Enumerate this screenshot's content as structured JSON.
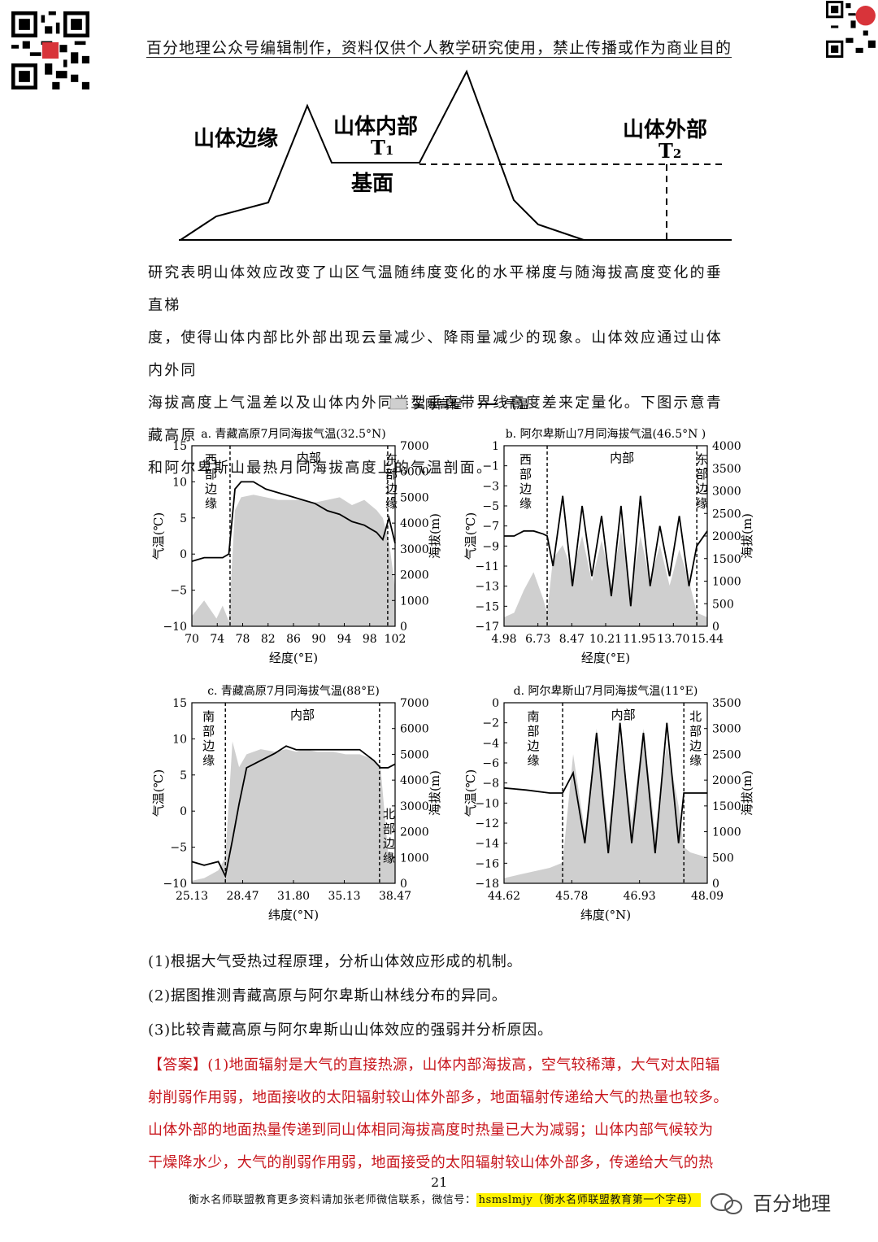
{
  "header": {
    "text": "百分地理公众号编辑制作，资料仅供个人教学研究使用，禁止传播或作为商业目的"
  },
  "diagram": {
    "label_edge": "山体边缘",
    "label_inner": "山体内部",
    "label_outer": "山体外部",
    "label_t1": "T",
    "label_t1_sub": "1",
    "label_t2": "T",
    "label_t2_sub": "2",
    "label_base": "基面"
  },
  "intro": {
    "line1": "研究表明山体效应改变了山区气温随纬度变化的水平梯度与随海拔高度变化的垂直梯",
    "line2": "度，使得山体内部比外部出现云量减少、降雨量减少的现象。山体效应通过山体内外同",
    "line3": "海拔高度上气温差以及山体内外同类型垂直带界线高度差来定量化。下图示意青藏高原",
    "line4": "和阿尔卑斯山最热月同海拔高度上的气温剖面。"
  },
  "legend": {
    "elev": "实际高程",
    "temp": "气温"
  },
  "chart_data": [
    {
      "type": "line",
      "title": "a. 青藏高原7月同海拔气温(32.5°N)",
      "xlabel": "经度(°E)",
      "ylabel_left": "气温(℃)",
      "ylabel_right": "海拔(m)",
      "xticks": [
        "70",
        "74",
        "78",
        "82",
        "86",
        "90",
        "94",
        "98",
        "102"
      ],
      "yticks_left": [
        "15",
        "10",
        "5",
        "0",
        "−5",
        "−10"
      ],
      "yticks_right": [
        "7000",
        "6000",
        "5000",
        "4000",
        "3000",
        "2000",
        "1000",
        "0"
      ],
      "xlim": [
        70,
        103
      ],
      "ylim_left": [
        -10,
        15
      ],
      "ylim_right": [
        0,
        7000
      ],
      "zones": [
        "西部边缘",
        "内部",
        "东部边缘"
      ],
      "boundaries": [
        76.2,
        101.8
      ],
      "series": [
        {
          "name": "气温",
          "x": [
            70,
            72,
            74,
            75,
            76,
            77,
            78,
            80,
            82,
            84,
            86,
            88,
            90,
            92,
            94,
            96,
            98,
            100,
            101,
            102,
            103
          ],
          "values": [
            -1,
            -0.5,
            -0.5,
            -0.5,
            0,
            9,
            10,
            10,
            9,
            8.5,
            8,
            7.5,
            7,
            6,
            5.5,
            4.5,
            4,
            3,
            2,
            5,
            1.5
          ]
        },
        {
          "name": "实际高程",
          "x": [
            70,
            72,
            74,
            75,
            76,
            77,
            78,
            80,
            82,
            84,
            86,
            88,
            90,
            92,
            94,
            96,
            98,
            100,
            101,
            102,
            103
          ],
          "values": [
            400,
            1000,
            300,
            800,
            200,
            4500,
            5000,
            5100,
            5000,
            4900,
            4900,
            4900,
            4800,
            4900,
            5000,
            4700,
            4900,
            4500,
            4200,
            3300,
            1500
          ]
        }
      ]
    },
    {
      "type": "line",
      "title": "b. 阿尔卑斯山7月同海拔气温(46.5°N )",
      "xlabel": "经度(°E)",
      "ylabel_left": "气温(℃)",
      "ylabel_right": "海拔(m)",
      "xticks": [
        "4.98",
        "6.73",
        "8.47",
        "10.21",
        "11.95",
        "13.70",
        "15.44"
      ],
      "yticks_left": [
        "1",
        "−1",
        "−3",
        "−5",
        "−7",
        "−9",
        "−11",
        "−13",
        "−15",
        "−17"
      ],
      "yticks_right": [
        "4000",
        "3500",
        "3000",
        "2500",
        "2000",
        "1500",
        "1000",
        "500",
        "0"
      ],
      "xlim": [
        4.98,
        15.44
      ],
      "ylim_left": [
        -17,
        1
      ],
      "ylim_right": [
        0,
        4000
      ],
      "zones": [
        "西部边缘",
        "内部",
        "东部边缘"
      ],
      "boundaries": [
        7.2,
        14.9
      ],
      "series": [
        {
          "name": "气温",
          "x": [
            4.98,
            5.5,
            6,
            6.5,
            7,
            7.2,
            7.5,
            8,
            8.5,
            9,
            9.5,
            10,
            10.5,
            11,
            11.5,
            12,
            12.5,
            13,
            13.5,
            14,
            14.5,
            14.9,
            15.44
          ],
          "values": [
            -8,
            -8,
            -7.5,
            -7.5,
            -7.8,
            -8,
            -11,
            -4,
            -13,
            -5,
            -12,
            -6,
            -14,
            -5,
            -15,
            -4,
            -13,
            -7,
            -12,
            -6,
            -13,
            -9,
            -7.5
          ]
        },
        {
          "name": "实际高程",
          "x": [
            4.98,
            5.5,
            6,
            6.5,
            7,
            7.2,
            7.5,
            8,
            8.5,
            9,
            9.5,
            10,
            10.5,
            11,
            11.5,
            12,
            12.5,
            13,
            13.5,
            14,
            14.5,
            14.9,
            15.44
          ],
          "values": [
            200,
            300,
            800,
            1200,
            600,
            300,
            1500,
            1800,
            1200,
            2000,
            1000,
            1900,
            900,
            2100,
            800,
            2000,
            1000,
            1800,
            900,
            1700,
            1000,
            300,
            200
          ]
        }
      ]
    },
    {
      "type": "line",
      "title": "c. 青藏高原7月同海拔气温(88°E)",
      "xlabel": "纬度(°N)",
      "ylabel_left": "气温(℃)",
      "ylabel_right": "海拔(m)",
      "xticks": [
        "25.13",
        "28.47",
        "31.80",
        "35.13",
        "38.47"
      ],
      "yticks_left": [
        "15",
        "10",
        "5",
        "0",
        "−5",
        "−10"
      ],
      "yticks_right": [
        "7000",
        "6000",
        "5000",
        "4000",
        "3000",
        "2000",
        "1000",
        "0"
      ],
      "xlim": [
        25.13,
        39.5
      ],
      "ylim_left": [
        -10,
        15
      ],
      "ylim_right": [
        0,
        7000
      ],
      "zones": [
        "南部边缘",
        "内部",
        "北部边缘"
      ],
      "boundaries": [
        27.5,
        38.4
      ],
      "series": [
        {
          "name": "气温",
          "x": [
            25.13,
            26,
            27,
            27.5,
            28,
            28.47,
            29,
            30,
            31,
            31.8,
            32.5,
            33,
            34,
            35.13,
            36,
            37,
            38,
            38.47,
            39,
            39.5
          ],
          "values": [
            -7,
            -7.5,
            -7,
            -9,
            -4,
            1,
            6,
            7,
            8,
            9,
            8.5,
            8.5,
            8.5,
            8.5,
            8.5,
            8.5,
            7,
            6,
            6,
            6.5
          ]
        },
        {
          "name": "实际高程",
          "x": [
            25.13,
            26,
            27,
            27.5,
            28,
            28.47,
            29,
            30,
            31,
            31.8,
            32.5,
            33,
            34,
            35.13,
            36,
            37,
            38,
            38.47,
            39,
            39.5
          ],
          "values": [
            100,
            200,
            500,
            1000,
            5500,
            4500,
            5000,
            5200,
            5100,
            5200,
            5100,
            5200,
            5100,
            5100,
            5000,
            5000,
            4800,
            4500,
            1200,
            1000
          ]
        }
      ]
    },
    {
      "type": "line",
      "title": "d. 阿尔卑斯山7月同海拔气温(11°E)",
      "xlabel": "纬度(°N)",
      "ylabel_left": "气温(℃)",
      "ylabel_right": "海拔(m)",
      "xticks": [
        "44.62",
        "45.78",
        "46.93",
        "48.09"
      ],
      "yticks_left": [
        "0",
        "−2",
        "−4",
        "−6",
        "−8",
        "−10",
        "−12",
        "−14",
        "−16",
        "−18"
      ],
      "yticks_right": [
        "3500",
        "3000",
        "2500",
        "2000",
        "1500",
        "1000",
        "500",
        "0"
      ],
      "xlim": [
        44.62,
        48.09
      ],
      "ylim_left": [
        -18,
        0
      ],
      "ylim_right": [
        0,
        3500
      ],
      "zones": [
        "南部边缘",
        "内部",
        "北部边缘"
      ],
      "boundaries": [
        45.62,
        47.69
      ],
      "series": [
        {
          "name": "气温",
          "x": [
            44.62,
            45,
            45.4,
            45.62,
            45.8,
            46,
            46.2,
            46.4,
            46.6,
            46.8,
            47,
            47.2,
            47.4,
            47.6,
            47.69,
            47.8,
            48.09
          ],
          "values": [
            -8.5,
            -8.7,
            -9,
            -9,
            -7,
            -14,
            -3,
            -15,
            -2,
            -14,
            -3,
            -15,
            -2,
            -14,
            -9,
            -9,
            -9
          ]
        },
        {
          "name": "实际高程",
          "x": [
            44.62,
            45,
            45.4,
            45.62,
            45.8,
            46,
            46.2,
            46.4,
            46.6,
            46.8,
            47,
            47.2,
            47.4,
            47.6,
            47.69,
            47.8,
            48.09
          ],
          "values": [
            100,
            200,
            300,
            400,
            2500,
            1000,
            3000,
            1000,
            2800,
            1200,
            3000,
            1000,
            2700,
            1500,
            700,
            600,
            500
          ]
        }
      ]
    }
  ],
  "questions": {
    "q1": "(1)根据大气受热过程原理，分析山体效应形成的机制。",
    "q2": "(2)据图推测青藏高原与阿尔卑斯山林线分布的异同。",
    "q3": "(3)比较青藏高原与阿尔卑斯山山体效应的强弱并分析原因。"
  },
  "answer": {
    "tag": "【答案】",
    "line1": "(1)地面辐射是大气的直接热源，山体内部海拔高，空气较稀薄，大气对太阳辐",
    "line2": "射削弱作用弱，地面接收的太阳辐射较山体外部多，地面辐射传递给大气的热量也较多。",
    "line3": "山体外部的地面热量传递到同山体相同海拔高度时热量已大为减弱；山体内部气候较为",
    "line4": "干燥降水少，大气的削弱作用弱，地面接受的太阳辐射较山体外部多，传递给大气的热"
  },
  "footer": {
    "page": "21",
    "text": "衡水名师联盟教育更多资料请加张老师微信联系，微信号：",
    "highlight": "hsmslmjy（衡水名师联盟教育第一个字母）",
    "logo_text": "百分地理"
  },
  "colors": {
    "answer_red": "#c8161d",
    "highlight_yellow": "#fff200",
    "elev_gray": "#cfcfcf"
  }
}
